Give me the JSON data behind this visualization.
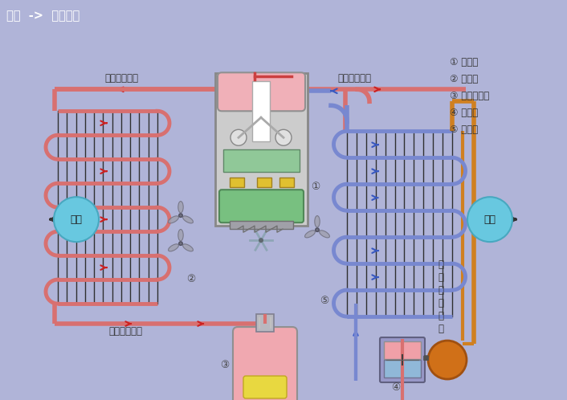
{
  "title_bar_text": "原理  ->  制冷原理",
  "title_bar_bg": "#686878",
  "title_bar_fg": "#ffffff",
  "bg_color": "#b0b4d8",
  "legend_items": [
    [
      "①",
      "压缩机"
    ],
    [
      "②",
      "冷凝器"
    ],
    [
      "③",
      "储液干燥器"
    ],
    [
      "④",
      "膨胀阀"
    ],
    [
      "⑤",
      "蕲发器"
    ]
  ],
  "label_high_hot_gas": "高温高压气态",
  "label_low_cold_gas": "低温低压气态",
  "label_mid_high_liquid": "中温高压液态",
  "label_low_cold_liquid": "低\n温\n低\n压\n液\n态",
  "label_heat_out": "散热",
  "label_heat_in": "吸热",
  "pipe_high_color": "#d87070",
  "pipe_low_color": "#7888d0",
  "pipe_mid_color": "#d87070",
  "arrow_color": "#cc2020",
  "orange_pipe_color": "#d08020",
  "fan_color": "#9898a8",
  "bubble_color": "#60c8e8",
  "coil_dark_color": "#303030"
}
